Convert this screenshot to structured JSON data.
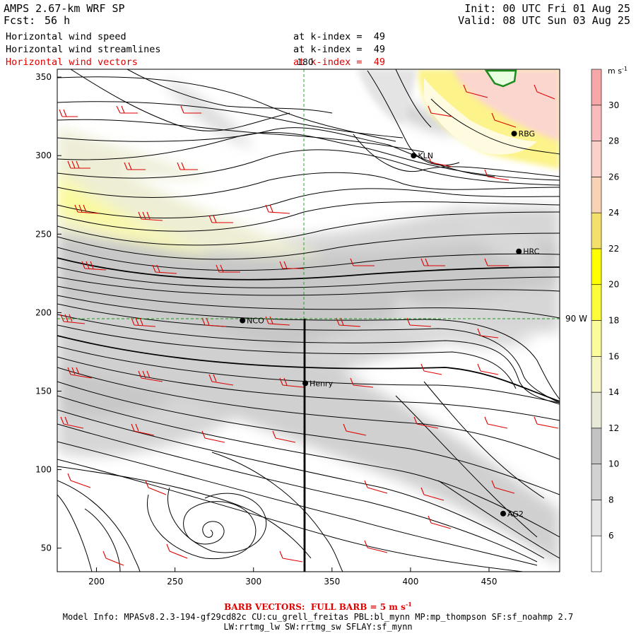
{
  "header": {
    "model": "AMPS 2.67-km WRF SP",
    "fcst_label": "Fcst:",
    "fcst_value": "56 h",
    "init": "Init: 00 UTC Fri 01 Aug 25",
    "valid": "Valid: 08 UTC Sun 03 Aug 25"
  },
  "fields": [
    {
      "name": "Horizontal wind speed",
      "level": "at k-index =  49",
      "color": "#000000"
    },
    {
      "name": "Horizontal wind streamlines",
      "level": "at k-index =  49",
      "color": "#000000"
    },
    {
      "name": "Horizontal wind vectors",
      "level": "at k-index =  49",
      "color": "#e00000"
    }
  ],
  "map": {
    "x_ticks": [
      "200",
      "250",
      "300",
      "350",
      "400",
      "450"
    ],
    "y_ticks": [
      "350",
      "300",
      "250",
      "200",
      "150",
      "100",
      "50"
    ],
    "meridian_label": "180",
    "parallel_label": "90 W",
    "stations": [
      {
        "id": "KLN",
        "x": 402,
        "y": 300
      },
      {
        "id": "RBG",
        "x": 466,
        "y": 314
      },
      {
        "id": "HRC",
        "x": 469,
        "y": 239
      },
      {
        "id": "NCO",
        "x": 293,
        "y": 195
      },
      {
        "id": "Henry",
        "x": 333,
        "y": 155
      },
      {
        "id": "AG2",
        "x": 459,
        "y": 72
      }
    ]
  },
  "colorbar": {
    "unit": "m s",
    "unit_exp": "-1",
    "levels": [
      "6",
      "8",
      "10",
      "12",
      "14",
      "16",
      "18",
      "20",
      "22",
      "24",
      "26",
      "28",
      "30"
    ],
    "colors": [
      "#ffffff",
      "#e6e6e6",
      "#d2d2d2",
      "#c3c3c3",
      "#e9e9d7",
      "#f6f6c5",
      "#fbfb9c",
      "#fcfc3a",
      "#ffff00",
      "#f3e06a",
      "#f8d2b4",
      "#fbd0c8",
      "#f9bbbb",
      "#f6a8a8"
    ]
  },
  "footer": {
    "barb_label": "BARB VECTORS:",
    "barb_desc": "FULL BARB = 5 m s",
    "barb_exp": "-1",
    "model_info": "Model Info: MPASv8.2.3-194-gf29cd82c CU:cu_grell_freitas PBL:bl_mynn MP:mp_thompson SF:sf_noahmp 2.7",
    "physics": "LW:rrtmg_lw SW:rrtmg_sw SFLAY:sf_mynn"
  }
}
